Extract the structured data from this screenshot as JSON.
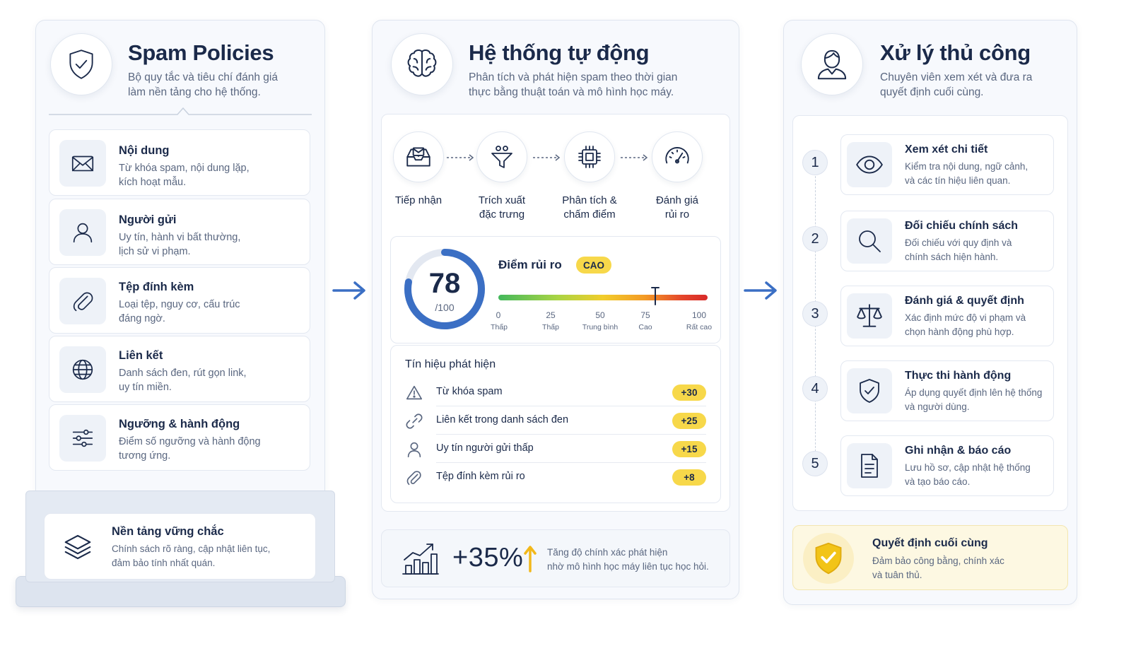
{
  "policies": {
    "title": "Spam Policies",
    "subtitle_line1": "Bộ quy tắc và tiêu chí đánh giá",
    "subtitle_line2": "làm nền tảng cho hệ thống.",
    "header_icon": "shield-check-icon",
    "items": [
      {
        "title": "Nội dung",
        "desc1": "Từ khóa spam, nội dung lặp,",
        "desc2": "kích hoạt mẫu.",
        "icon": "envelope-icon"
      },
      {
        "title": "Người gửi",
        "desc1": "Uy tín, hành vi bất thường,",
        "desc2": "lịch sử vi phạm.",
        "icon": "user-icon"
      },
      {
        "title": "Tệp đính kèm",
        "desc1": "Loại tệp, nguy cơ, cấu trúc",
        "desc2": "đáng ngờ.",
        "icon": "paperclip-icon"
      },
      {
        "title": "Liên kết",
        "desc1": "Danh sách đen, rút gọn link,",
        "desc2": "uy tín miền.",
        "icon": "globe-icon"
      },
      {
        "title": "Ngưỡng & hành động",
        "desc1": "Điểm số ngưỡng và hành động",
        "desc2": "tương ứng.",
        "icon": "sliders-icon"
      }
    ],
    "foundation": {
      "title": "Nền tảng vững chắc",
      "desc1": "Chính sách rõ ràng, cập nhật liên tục,",
      "desc2": "đảm bảo tính nhất quán.",
      "icon": "layers-icon"
    }
  },
  "auto": {
    "title": "Hệ thống tự động",
    "subtitle_line1": "Phân tích và phát hiện spam theo thời gian",
    "subtitle_line2": "thực bằng thuật toán và mô hình học máy.",
    "header_icon": "brain-icon",
    "pipeline": [
      {
        "line1": "Tiếp nhận",
        "line2": "",
        "icon": "inbox-icon"
      },
      {
        "line1": "Trích xuất",
        "line2": "đặc trưng",
        "icon": "filter-icon"
      },
      {
        "line1": "Phân tích &",
        "line2": "chấm điểm",
        "icon": "chip-icon"
      },
      {
        "line1": "Đánh giá",
        "line2": "rủi ro",
        "icon": "gauge-icon"
      }
    ],
    "score": {
      "value": "78",
      "max": "/100",
      "fraction": 0.78,
      "label": "Điểm rủi ro",
      "level": "CAO",
      "scale_marker": 75,
      "ticks": [
        {
          "num": "0",
          "label": "Thấp"
        },
        {
          "num": "25",
          "label": "Thấp"
        },
        {
          "num": "50",
          "label": "Trung bình"
        },
        {
          "num": "75",
          "label": "Cao"
        },
        {
          "num": "100",
          "label": "Rất cao"
        }
      ]
    },
    "signals_title": "Tín hiệu phát hiện",
    "signals": [
      {
        "text": "Từ khóa spam",
        "points": "+30",
        "icon": "warning-icon"
      },
      {
        "text": "Liên kết trong danh sách đen",
        "points": "+25",
        "icon": "link-icon"
      },
      {
        "text": "Uy tín người gửi thấp",
        "points": "+15",
        "icon": "user-icon"
      },
      {
        "text": "Tệp đính kèm rủi ro",
        "points": "+8",
        "icon": "paperclip-icon"
      }
    ],
    "improvement": {
      "value": "+35%",
      "desc1": "Tăng độ chính xác phát hiện",
      "desc2": "nhờ mô hình học máy liên tục học hỏi.",
      "icon": "growth-chart-icon"
    }
  },
  "manual": {
    "title": "Xử lý thủ công",
    "subtitle_line1": "Chuyên viên xem xét và đưa ra",
    "subtitle_line2": "quyết định cuối cùng.",
    "header_icon": "reviewer-icon",
    "steps": [
      {
        "num": "1",
        "title": "Xem xét chi tiết",
        "desc1": "Kiểm tra nội dung, ngữ cảnh,",
        "desc2": "và các tín hiệu liên quan.",
        "icon": "eye-icon"
      },
      {
        "num": "2",
        "title": "Đối chiếu chính sách",
        "desc1": "Đối chiếu với quy định và",
        "desc2": "chính sách hiện hành.",
        "icon": "search-icon"
      },
      {
        "num": "3",
        "title": "Đánh giá & quyết định",
        "desc1": "Xác định mức độ vi phạm và",
        "desc2": "chọn hành động phù hợp.",
        "icon": "scales-icon"
      },
      {
        "num": "4",
        "title": "Thực thi hành động",
        "desc1": "Áp dụng quyết định lên hệ thống",
        "desc2": "và người dùng.",
        "icon": "shield-check-icon"
      },
      {
        "num": "5",
        "title": "Ghi nhận & báo cáo",
        "desc1": "Lưu hồ sơ, cập nhật hệ thống",
        "desc2": "và tạo báo cáo.",
        "icon": "document-icon"
      }
    ],
    "final": {
      "title": "Quyết định cuối cùng",
      "desc1": "Đảm bảo công bằng, chính xác",
      "desc2": "và tuân thủ.",
      "icon": "gold-shield-check-icon"
    }
  },
  "colors": {
    "navy": "#1b2a4a",
    "accent_blue": "#3b6fc4",
    "badge_yellow": "#f7d84a",
    "final_bg": "#fdf8e2",
    "gold": "#f2c418"
  }
}
